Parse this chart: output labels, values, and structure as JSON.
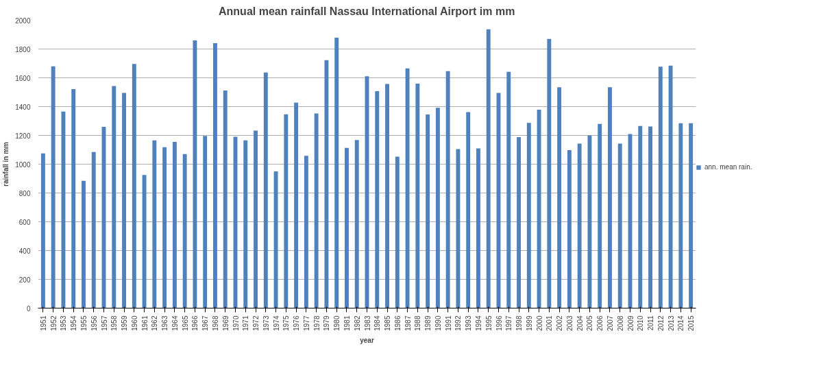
{
  "chart_data": {
    "type": "bar",
    "title": "Annual mean rainfall Nassau International Airport im mm",
    "xlabel": "year",
    "ylabel": "rainfall in mm",
    "categories": [
      "1951",
      "1952",
      "1953",
      "1954",
      "1955",
      "1956",
      "1957",
      "1958",
      "1959",
      "1960",
      "1961",
      "1962",
      "1963",
      "1964",
      "1965",
      "1966",
      "1967",
      "1968",
      "1969",
      "1970",
      "1971",
      "1972",
      "1973",
      "1974",
      "1975",
      "1976",
      "1977",
      "1978",
      "1979",
      "1980",
      "1981",
      "1982",
      "1983",
      "1984",
      "1985",
      "1986",
      "1987",
      "1988",
      "1989",
      "1990",
      "1991",
      "1992",
      "1993",
      "1994",
      "1995",
      "1996",
      "1997",
      "1998",
      "1999",
      "2000",
      "2001",
      "2002",
      "2003",
      "2004",
      "2005",
      "2006",
      "2007",
      "2008",
      "2009",
      "2010",
      "2011",
      "2012",
      "2013",
      "2014",
      "2015"
    ],
    "series": [
      {
        "name": "ann. mean rain.",
        "color": "#4f81bd",
        "values": [
          1075,
          1680,
          1365,
          1522,
          885,
          1085,
          1260,
          1543,
          1495,
          1697,
          925,
          1165,
          1118,
          1155,
          1070,
          1860,
          1197,
          1840,
          1512,
          1190,
          1165,
          1233,
          1637,
          950,
          1347,
          1427,
          1058,
          1352,
          1723,
          1878,
          1113,
          1168,
          1611,
          1507,
          1557,
          1052,
          1665,
          1560,
          1345,
          1392,
          1647,
          1105,
          1362,
          1110,
          1937,
          1495,
          1642,
          1188,
          1287,
          1378,
          1870,
          1535,
          1098,
          1143,
          1200,
          1280,
          1535,
          1143,
          1210,
          1265,
          1262,
          1677,
          1685,
          1285,
          1285
        ]
      }
    ],
    "ylim": [
      0,
      2000
    ],
    "yticks": [
      0,
      200,
      400,
      600,
      800,
      1000,
      1200,
      1400,
      1600,
      1800,
      2000
    ],
    "grid": "y",
    "legend": "right"
  }
}
